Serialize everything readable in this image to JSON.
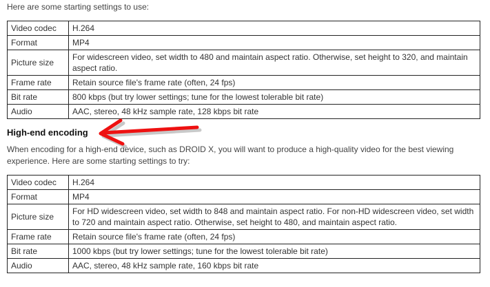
{
  "intro": "Here are some starting settings to use:",
  "table1": [
    {
      "key": "Video codec",
      "value": "H.264"
    },
    {
      "key": "Format",
      "value": "MP4"
    },
    {
      "key": "Picture size",
      "value": "For widescreen video, set width to 480 and maintain aspect ratio. Otherwise, set height to 320, and maintain aspect ratio."
    },
    {
      "key": "Frame rate",
      "value": "Retain source file's frame rate (often, 24 fps)"
    },
    {
      "key": "Bit rate",
      "value": "800 kbps (but try lower settings; tune for the lowest tolerable bit rate)"
    },
    {
      "key": "Audio",
      "value": "AAC, stereo, 48 kHz sample rate, 128 kbps bit rate"
    }
  ],
  "heading": "High-end encoding",
  "paragraph": "When encoding for a high-end device, such as DROID X, you will want to produce a high-quality video for the best viewing experience. Here are some starting settings to try:",
  "table2": [
    {
      "key": "Video codec",
      "value": "H.264"
    },
    {
      "key": "Format",
      "value": "MP4"
    },
    {
      "key": "Picture size",
      "value": "For HD widescreen video, set width to 848 and maintain aspect ratio. For non-HD widescreen video, set width to 720 and maintain aspect ratio. Otherwise, set height to 480, and maintain aspect ratio."
    },
    {
      "key": "Frame rate",
      "value": "Retain source file's frame rate (often, 24 fps)"
    },
    {
      "key": "Bit rate",
      "value": "1000 kbps (but try lower settings; tune for the lowest tolerable bit rate)"
    },
    {
      "key": "Audio",
      "value": "AAC, stereo, 48 kHz sample rate, 160 kbps bit rate"
    }
  ],
  "annotation": {
    "icon": "red-arrow-icon",
    "color": "#ee1111",
    "points_to": "heading"
  }
}
